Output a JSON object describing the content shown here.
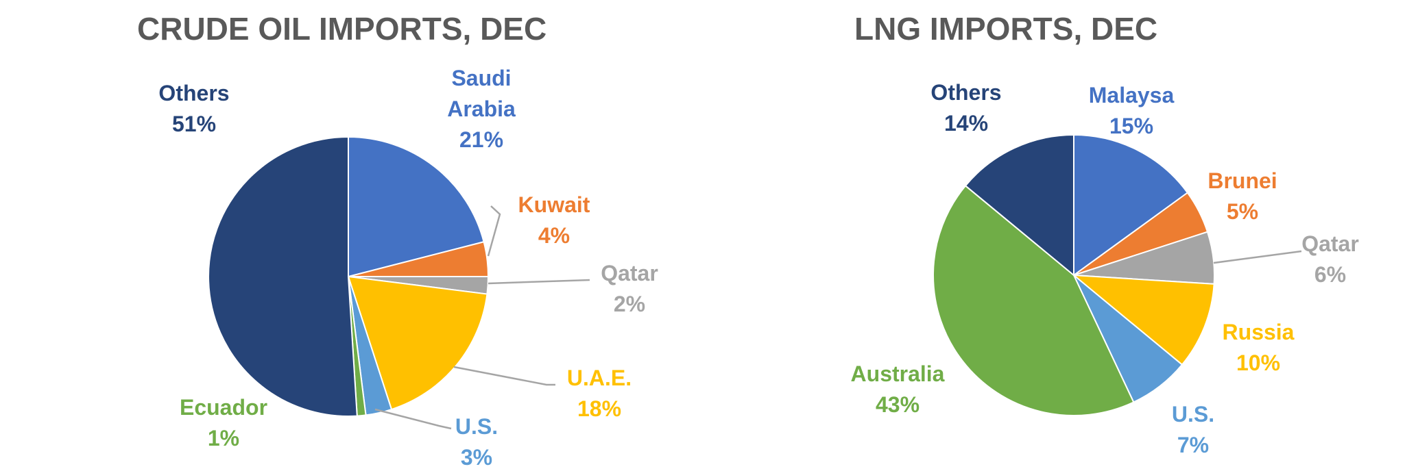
{
  "chart_data": [
    {
      "type": "pie",
      "title": "CRUDE OIL IMPORTS, DEC",
      "slices": [
        {
          "label": [
            "Saudi",
            "Arabia"
          ],
          "value": 21,
          "value_label": "21%",
          "color": "#4472C4"
        },
        {
          "label": [
            "Kuwait"
          ],
          "value": 4,
          "value_label": "4%",
          "color": "#ED7D31"
        },
        {
          "label": [
            "Qatar"
          ],
          "value": 2,
          "value_label": "2%",
          "color": "#A5A5A5"
        },
        {
          "label": [
            "U.A.E."
          ],
          "value": 18,
          "value_label": "18%",
          "color": "#FFC000"
        },
        {
          "label": [
            "U.S."
          ],
          "value": 3,
          "value_label": "3%",
          "color": "#5B9BD5"
        },
        {
          "label": [
            "Ecuador"
          ],
          "value": 1,
          "value_label": "1%",
          "color": "#70AD47"
        },
        {
          "label": [
            "Others"
          ],
          "value": 51,
          "value_label": "51%",
          "color": "#264478"
        }
      ]
    },
    {
      "type": "pie",
      "title": "LNG IMPORTS, DEC",
      "slices": [
        {
          "label": [
            "Malaysa"
          ],
          "value": 15,
          "value_label": "15%",
          "color": "#4472C4"
        },
        {
          "label": [
            "Brunei"
          ],
          "value": 5,
          "value_label": "5%",
          "color": "#ED7D31"
        },
        {
          "label": [
            "Qatar"
          ],
          "value": 6,
          "value_label": "6%",
          "color": "#A5A5A5"
        },
        {
          "label": [
            "Russia"
          ],
          "value": 10,
          "value_label": "10%",
          "color": "#FFC000"
        },
        {
          "label": [
            "U.S."
          ],
          "value": 7,
          "value_label": "7%",
          "color": "#5B9BD5"
        },
        {
          "label": [
            "Australia"
          ],
          "value": 43,
          "value_label": "43%",
          "color": "#70AD47"
        },
        {
          "label": [
            "Others"
          ],
          "value": 14,
          "value_label": "14%",
          "color": "#264478"
        }
      ]
    }
  ]
}
